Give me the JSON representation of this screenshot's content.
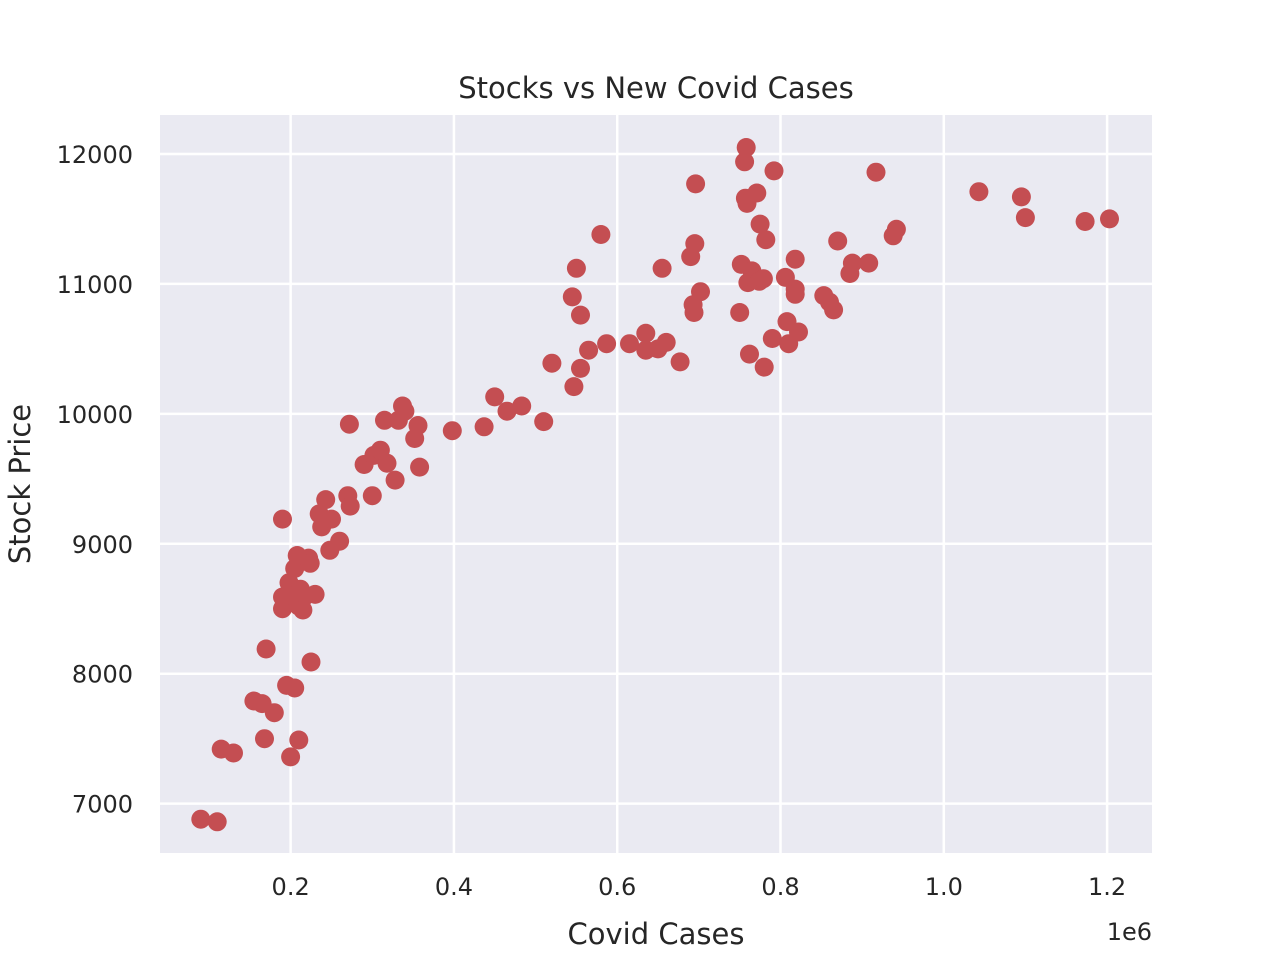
{
  "chart_data": {
    "type": "scatter",
    "title": "Stocks vs New Covid Cases",
    "xlabel": "Covid Cases",
    "ylabel": "Stock Price",
    "x_offset_text": "1e6",
    "xlim": [
      0.04,
      1.255
    ],
    "ylim": [
      6620,
      12300
    ],
    "xticks": [
      0.2,
      0.4,
      0.6,
      0.8,
      1.0,
      1.2
    ],
    "xtick_labels": [
      "0.2",
      "0.4",
      "0.6",
      "0.8",
      "1.0",
      "1.2"
    ],
    "yticks": [
      7000,
      8000,
      9000,
      10000,
      11000,
      12000
    ],
    "ytick_labels": [
      "7000",
      "8000",
      "9000",
      "10000",
      "11000",
      "12000"
    ],
    "grid": true,
    "background_color": "#eaeaf2",
    "grid_color": "#ffffff",
    "marker_color": "#c44e52",
    "x_unit_multiplier": 1000000,
    "points": [
      [
        0.09,
        6880
      ],
      [
        0.11,
        6860
      ],
      [
        0.115,
        7420
      ],
      [
        0.13,
        7390
      ],
      [
        0.155,
        7790
      ],
      [
        0.165,
        7770
      ],
      [
        0.168,
        7500
      ],
      [
        0.17,
        8190
      ],
      [
        0.18,
        7700
      ],
      [
        0.19,
        9190
      ],
      [
        0.19,
        8500
      ],
      [
        0.19,
        8590
      ],
      [
        0.195,
        7910
      ],
      [
        0.198,
        8700
      ],
      [
        0.2,
        7360
      ],
      [
        0.202,
        8600
      ],
      [
        0.205,
        8810
      ],
      [
        0.205,
        7890
      ],
      [
        0.208,
        8910
      ],
      [
        0.21,
        8520
      ],
      [
        0.212,
        8650
      ],
      [
        0.215,
        8580
      ],
      [
        0.21,
        7490
      ],
      [
        0.215,
        8490
      ],
      [
        0.222,
        8890
      ],
      [
        0.224,
        8850
      ],
      [
        0.225,
        8090
      ],
      [
        0.23,
        8610
      ],
      [
        0.235,
        9230
      ],
      [
        0.238,
        9130
      ],
      [
        0.243,
        9340
      ],
      [
        0.248,
        8950
      ],
      [
        0.25,
        9190
      ],
      [
        0.26,
        9020
      ],
      [
        0.27,
        9370
      ],
      [
        0.272,
        9920
      ],
      [
        0.273,
        9290
      ],
      [
        0.29,
        9610
      ],
      [
        0.3,
        9370
      ],
      [
        0.302,
        9680
      ],
      [
        0.31,
        9720
      ],
      [
        0.315,
        9950
      ],
      [
        0.318,
        9620
      ],
      [
        0.328,
        9490
      ],
      [
        0.332,
        9950
      ],
      [
        0.337,
        10060
      ],
      [
        0.34,
        10020
      ],
      [
        0.352,
        9810
      ],
      [
        0.356,
        9910
      ],
      [
        0.358,
        9590
      ],
      [
        0.398,
        9870
      ],
      [
        0.437,
        9900
      ],
      [
        0.45,
        10130
      ],
      [
        0.465,
        10020
      ],
      [
        0.483,
        10060
      ],
      [
        0.51,
        9940
      ],
      [
        0.52,
        10390
      ],
      [
        0.545,
        10900
      ],
      [
        0.547,
        10210
      ],
      [
        0.55,
        11120
      ],
      [
        0.555,
        10760
      ],
      [
        0.555,
        10350
      ],
      [
        0.565,
        10490
      ],
      [
        0.58,
        11380
      ],
      [
        0.587,
        10540
      ],
      [
        0.615,
        10540
      ],
      [
        0.635,
        10620
      ],
      [
        0.635,
        10490
      ],
      [
        0.65,
        10500
      ],
      [
        0.655,
        11120
      ],
      [
        0.66,
        10550
      ],
      [
        0.677,
        10400
      ],
      [
        0.69,
        11210
      ],
      [
        0.693,
        10840
      ],
      [
        0.694,
        10780
      ],
      [
        0.695,
        11310
      ],
      [
        0.696,
        11770
      ],
      [
        0.702,
        10940
      ],
      [
        0.75,
        10780
      ],
      [
        0.752,
        11150
      ],
      [
        0.756,
        11940
      ],
      [
        0.757,
        11660
      ],
      [
        0.758,
        12050
      ],
      [
        0.759,
        11620
      ],
      [
        0.76,
        11010
      ],
      [
        0.762,
        10460
      ],
      [
        0.765,
        11100
      ],
      [
        0.768,
        11040
      ],
      [
        0.771,
        11700
      ],
      [
        0.774,
        11020
      ],
      [
        0.775,
        11460
      ],
      [
        0.779,
        11040
      ],
      [
        0.78,
        10360
      ],
      [
        0.782,
        11340
      ],
      [
        0.79,
        10580
      ],
      [
        0.792,
        11870
      ],
      [
        0.806,
        11050
      ],
      [
        0.808,
        10710
      ],
      [
        0.81,
        10540
      ],
      [
        0.818,
        11190
      ],
      [
        0.818,
        10960
      ],
      [
        0.818,
        10920
      ],
      [
        0.822,
        10630
      ],
      [
        0.853,
        10910
      ],
      [
        0.86,
        10860
      ],
      [
        0.865,
        10800
      ],
      [
        0.87,
        11330
      ],
      [
        0.885,
        11080
      ],
      [
        0.888,
        11160
      ],
      [
        0.908,
        11160
      ],
      [
        0.917,
        11860
      ],
      [
        0.938,
        11370
      ],
      [
        0.942,
        11420
      ],
      [
        1.043,
        11710
      ],
      [
        1.095,
        11670
      ],
      [
        1.1,
        11510
      ],
      [
        1.173,
        11480
      ],
      [
        1.203,
        11500
      ]
    ]
  }
}
